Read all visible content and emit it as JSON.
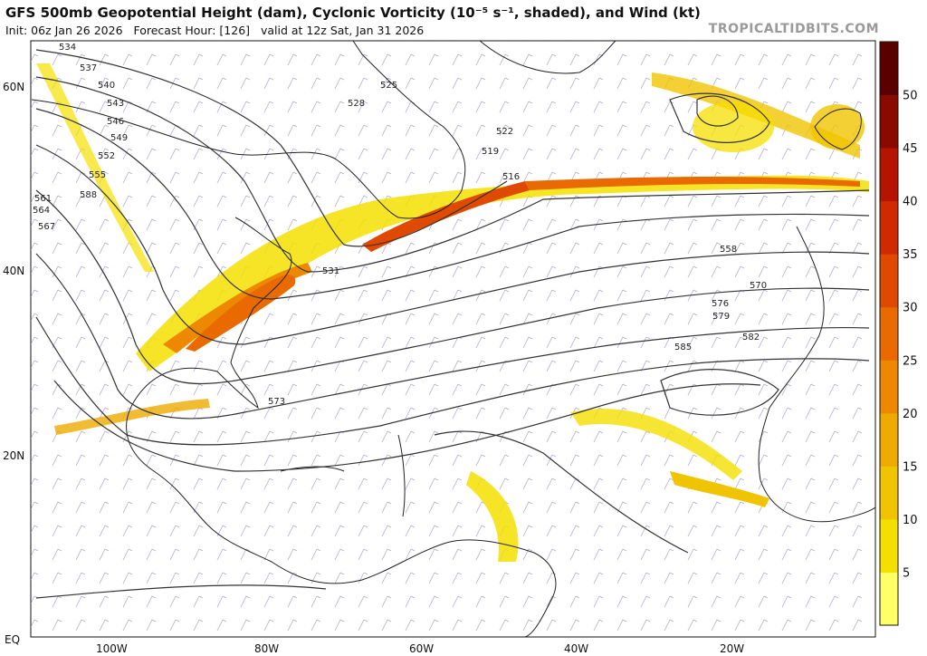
{
  "title": "GFS 500mb Geopotential Height (dam), Cyclonic Vorticity (10⁻⁵ s⁻¹, shaded), and Wind (kt)",
  "subtitle": {
    "init": "Init: 06z Jan 26 2026",
    "forecast_hour": "Forecast Hour: [126]",
    "valid": "valid at 12z Sat, Jan 31 2026"
  },
  "brand": "TROPICALTIDBITS.COM",
  "latitude_labels": [
    "60N",
    "40N",
    "20N",
    "EQ"
  ],
  "longitude_labels": [
    "100W",
    "80W",
    "60W",
    "40W",
    "20W"
  ],
  "colorbar": {
    "ticks": [
      "5",
      "10",
      "15",
      "20",
      "25",
      "30",
      "35",
      "40",
      "45",
      "50"
    ],
    "colors": [
      "#ffff66",
      "#f5df00",
      "#f0c400",
      "#eeaa00",
      "#ee8800",
      "#e86a00",
      "#e04a00",
      "#d02a00",
      "#b51500",
      "#8a0a00",
      "#5a0000"
    ]
  },
  "height_labels": [
    "534",
    "537",
    "540",
    "543",
    "546",
    "549",
    "552",
    "555",
    "561",
    "564",
    "567",
    "588",
    "525",
    "528",
    "519",
    "522",
    "516",
    "531",
    "585",
    "573",
    "576",
    "579",
    "570",
    "582",
    "558"
  ],
  "map_colors": {
    "contour": "#333333",
    "coast": "#222222",
    "barb": "#7777aa"
  }
}
